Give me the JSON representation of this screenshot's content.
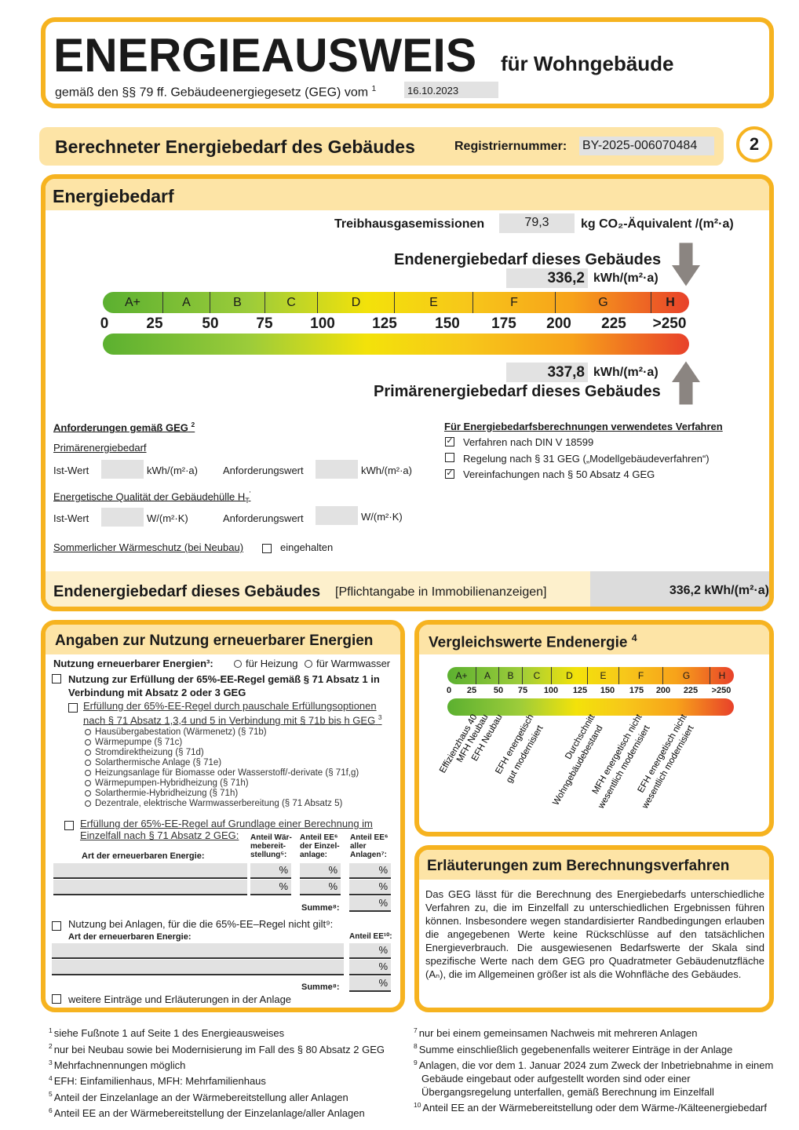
{
  "header": {
    "title": "ENERGIEAUSWEIS",
    "subtitle": "für Wohngebäude",
    "legal_basis": "gemäß den §§ 79 ff. Gebäudeenergiegesetz (GEG) vom",
    "legal_basis_footnote": "1",
    "date": "16.10.2023"
  },
  "section_band": {
    "title": "Berechneter Energiebedarf des Gebäudes",
    "reg_label": "Registriernummer:",
    "reg_number": "BY-2025-006070484",
    "page_number": "2"
  },
  "energiebedarf": {
    "title": "Energiebedarf",
    "ghg_label": "Treibhausgasemissionen",
    "ghg_value": "79,3",
    "ghg_unit": "kg CO₂-Äquivalent /(m²·a)",
    "end_label": "Endenergiebedarf dieses Gebäudes",
    "end_value": "336,2",
    "end_unit": "kWh/(m²·a)",
    "primary_label": "Primärenergiebedarf dieses Gebäudes",
    "primary_value": "337,8",
    "primary_unit": "kWh/(m²·a)",
    "scale": {
      "classes": [
        "A+",
        "A",
        "B",
        "C",
        "D",
        "E",
        "F",
        "G",
        "H"
      ],
      "ticks": [
        "0",
        "25",
        "50",
        "75",
        "100",
        "125",
        "150",
        "175",
        "200",
        "225",
        ">250"
      ],
      "colors": {
        "green": "#5bb030",
        "yellow": "#f3e20a",
        "orange": "#f7a21a",
        "red": "#e8412a"
      }
    },
    "requirements": {
      "title": "Anforderungen gemäß GEG",
      "title_sup": "2",
      "primary": "Primärenergiebedarf",
      "ist": "Ist-Wert",
      "unit_kwh": "kWh/(m²·a)",
      "anf": "Anforderungswert",
      "envelope": "Energetische Qualität der Gebäudehülle H",
      "envelope_sub": "T",
      "envelope_sup": "'",
      "unit_w": "W/(m²·K)",
      "summer": "Sommerlicher Wärmeschutz (bei Neubau)",
      "summer_check": "eingehalten"
    },
    "method": {
      "title": "Für Energiebedarfsberechnungen verwendetes Verfahren",
      "items": [
        {
          "label": "Verfahren nach DIN V 18599",
          "checked": true,
          "mark": "✓"
        },
        {
          "label": "Regelung nach § 31 GEG („Modellgebäudeverfahren“)",
          "checked": false,
          "mark": ""
        },
        {
          "label": "Vereinfachungen nach § 50 Absatz 4 GEG",
          "checked": true,
          "mark": "✓"
        }
      ]
    },
    "footer_label": "Endenergiebedarf dieses Gebäudes",
    "footer_note": "[Pflichtangabe in Immobilienanzeigen]",
    "footer_value": "336,2 kWh/(m²·a)"
  },
  "renewables": {
    "title": "Angaben zur Nutzung erneuerbarer Energien",
    "usage_label": "Nutzung erneuerbarer Energien³:",
    "opt_heating": "für Heizung",
    "opt_water": "für Warmwasser",
    "rule65": "Nutzung zur Erfüllung der 65%-EE-Regel gemäß § 71 Absatz 1 in Verbindung mit Absatz 2 oder 3 GEG",
    "pauschal": "Erfüllung der 65%-EE-Regel durch pauschale Erfüllungsoptionen nach § 71 Absatz 1,3,4 und 5 in Verbindung mit § 71b bis h GEG",
    "pauschal_sup": "3",
    "options": [
      "Hausübergabestation (Wärmenetz) (§ 71b)",
      "Wärmepumpe (§ 71c)",
      "Stromdirektheizung (§ 71d)",
      "Solarthermische Anlage (§ 71e)",
      "Heizungsanlage für Biomasse oder Wasserstoff/-derivate (§ 71f,g)",
      "Wärmepumpen-Hybridheizung (§ 71h)",
      "Solarthermie-Hybridheizung (§ 71h)",
      "Dezentrale, elektrische Warmwasserbereitung (§ 71 Absatz 5)"
    ],
    "einzelfall": "Erfüllung der 65%-EE-Regel auf Grundlage einer Berechnung im Einzelfall nach § 71 Absatz 2 GEG:",
    "art_label": "Art der erneuerbaren Energie:",
    "col1": "Anteil Wär- mebereit- stellung⁵:",
    "col2": "Anteil EE⁶ der Einzel- anlage:",
    "col3": "Anteil EE⁶ aller Anlagen⁷:",
    "pct": "%",
    "summe": "Summe⁸:",
    "not_applicable": "Nutzung bei Anlagen, für die die 65%-EE–Regel nicht gilt⁹:",
    "anteil_ee": "Anteil EE¹⁰:",
    "further": "weitere Einträge und Erläuterungen in der Anlage"
  },
  "comparison": {
    "title": "Vergleichswerte Endenergie",
    "title_sup": "4",
    "labels": [
      [
        "Effizienzhaus 40"
      ],
      [
        "MFH Neubau"
      ],
      [
        "EFH Neubau"
      ],
      [
        "EFH energetisch",
        "gut modernisiert"
      ],
      [
        "Durchschnitt",
        "Wohngebäudebestand"
      ],
      [
        "MFH energetisch nicht",
        "wesentlich modernisiert"
      ],
      [
        "EFH energetisch nicht",
        "wesentlich modernisiert"
      ]
    ]
  },
  "explanation": {
    "title": "Erläuterungen zum Berechnungsverfahren",
    "text": "Das GEG lässt für die Berechnung des Energiebedarfs unterschiedliche Verfahren zu, die im Einzelfall zu unterschiedlichen Ergebnissen führen können. Insbesondere wegen standardisierter Randbedingungen erlauben die angegebenen Werte keine Rückschlüsse auf den tatsächlichen Energieverbrauch. Die ausgewiesenen Bedarfswerte der Skala sind spezifische Werte nach dem GEG pro Quadratmeter Gebäudenutzfläche (Aₙ), die im Allgemeinen größer ist als die Wohnfläche des Gebäudes."
  },
  "footnotes": {
    "left": [
      {
        "n": "1",
        "text": "siehe Fußnote 1 auf Seite 1 des Energieausweises"
      },
      {
        "n": "2",
        "text": "nur bei Neubau sowie bei Modernisierung im Fall des § 80 Absatz 2 GEG"
      },
      {
        "n": "3",
        "text": "Mehrfachnennungen möglich"
      },
      {
        "n": "4",
        "text": "EFH: Einfamilienhaus, MFH: Mehrfamilienhaus"
      },
      {
        "n": "5",
        "text": "Anteil der Einzelanlage an der Wärmebereitstellung aller Anlagen"
      },
      {
        "n": "6",
        "text": "Anteil EE an der Wärmebereitstellung der Einzelanlage/aller Anlagen"
      }
    ],
    "right": [
      {
        "n": "7",
        "text": "nur bei einem gemeinsamen Nachweis mit mehreren Anlagen"
      },
      {
        "n": "8",
        "text": "Summe einschließlich gegebenenfalls weiterer Einträge in der Anlage"
      },
      {
        "n": "9",
        "text": "Anlagen, die vor dem 1. Januar 2024 zum Zweck der Inbetriebnahme in einem Gebäude eingebaut oder aufgestellt worden sind oder einer Übergangsregelung unterfallen, gemäß Berechnung im Einzelfall"
      },
      {
        "n": "10",
        "text": "Anteil EE an der Wärmebereitstellung oder dem Wärme-/Kälteenergiebedarf"
      }
    ]
  }
}
